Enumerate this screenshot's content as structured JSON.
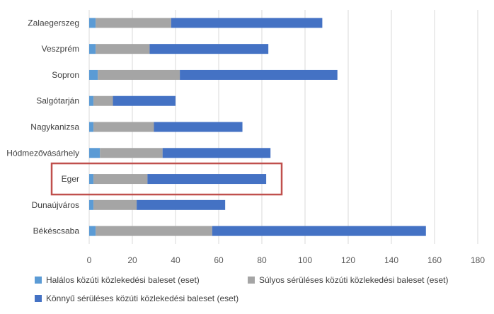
{
  "chart_data": {
    "type": "bar",
    "orientation": "horizontal",
    "stacked": true,
    "categories": [
      "Zalaegerszeg",
      "Veszprém",
      "Sopron",
      "Salgótarján",
      "Nagykanizsa",
      "Hódmezővásárhely",
      "Eger",
      "Dunaújváros",
      "Békéscsaba"
    ],
    "series": [
      {
        "name": "Halálos közúti közlekedési baleset (eset)",
        "color": "#5b9bd5",
        "values": [
          3,
          3,
          4,
          2,
          2,
          5,
          2,
          2,
          3
        ]
      },
      {
        "name": "Súlyos sérüléses közúti közlekedési baleset (eset)",
        "color": "#a5a5a5",
        "values": [
          35,
          25,
          38,
          9,
          28,
          29,
          25,
          20,
          54
        ]
      },
      {
        "name": "Könnyű sérüléses közúti közlekedési baleset (eset)",
        "color": "#4472c4",
        "values": [
          70,
          55,
          73,
          29,
          41,
          50,
          55,
          41,
          99
        ]
      }
    ],
    "xlim": [
      0,
      180
    ],
    "xticks": [
      "0",
      "20",
      "40",
      "60",
      "80",
      "100",
      "120",
      "140",
      "160",
      "180"
    ],
    "grid": "vertical",
    "legend_position": "bottom",
    "highlight": {
      "category": "Eger",
      "color": "#c0504d"
    }
  }
}
